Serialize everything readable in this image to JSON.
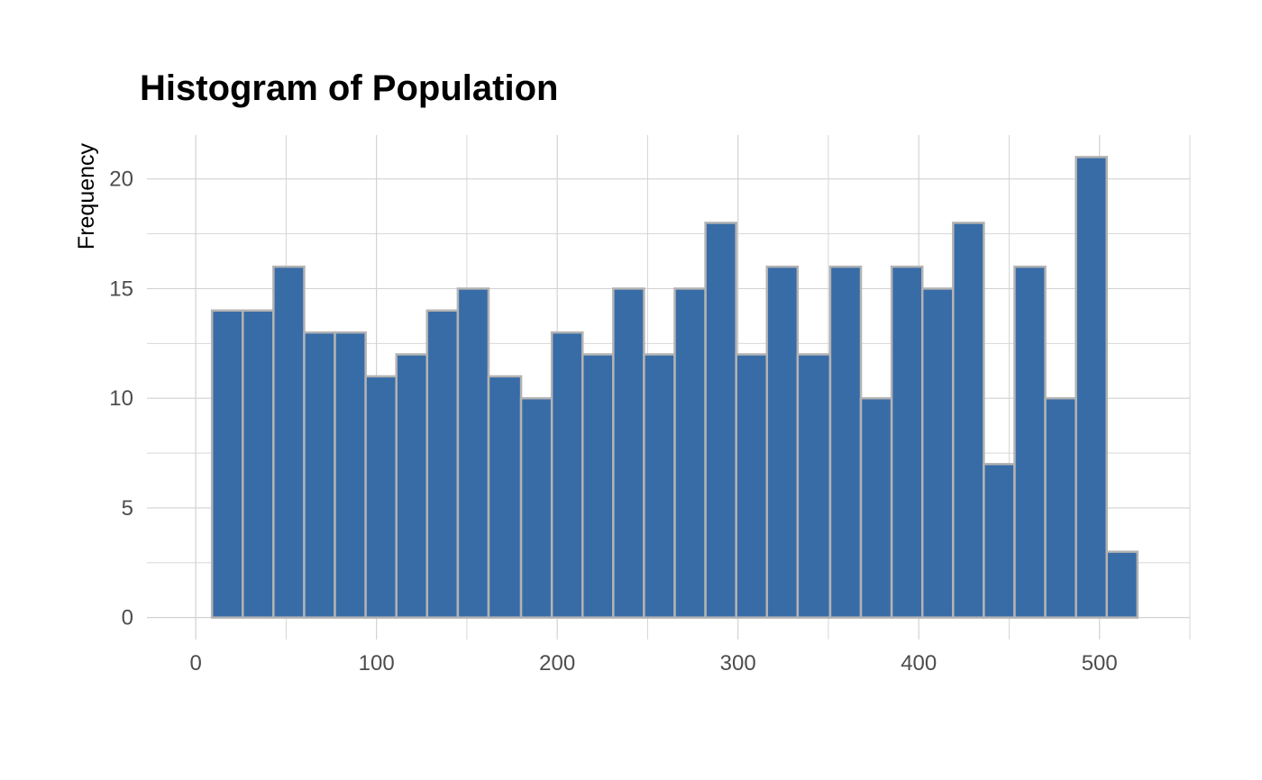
{
  "chart_data": {
    "type": "bar",
    "title": "Histogram of Population",
    "xlabel": "",
    "ylabel": "Frequency",
    "bins": [
      {
        "x0": 9,
        "x1": 26,
        "count": 14
      },
      {
        "x0": 26,
        "x1": 43,
        "count": 14
      },
      {
        "x0": 43,
        "x1": 60,
        "count": 16
      },
      {
        "x0": 60,
        "x1": 77,
        "count": 13
      },
      {
        "x0": 77,
        "x1": 94,
        "count": 13
      },
      {
        "x0": 94,
        "x1": 111,
        "count": 11
      },
      {
        "x0": 111,
        "x1": 128,
        "count": 12
      },
      {
        "x0": 128,
        "x1": 145,
        "count": 14
      },
      {
        "x0": 145,
        "x1": 162,
        "count": 15
      },
      {
        "x0": 162,
        "x1": 180,
        "count": 11
      },
      {
        "x0": 180,
        "x1": 197,
        "count": 10
      },
      {
        "x0": 197,
        "x1": 214,
        "count": 13
      },
      {
        "x0": 214,
        "x1": 231,
        "count": 12
      },
      {
        "x0": 231,
        "x1": 248,
        "count": 15
      },
      {
        "x0": 248,
        "x1": 265,
        "count": 12
      },
      {
        "x0": 265,
        "x1": 282,
        "count": 15
      },
      {
        "x0": 282,
        "x1": 299,
        "count": 18
      },
      {
        "x0": 299,
        "x1": 316,
        "count": 12
      },
      {
        "x0": 316,
        "x1": 333,
        "count": 16
      },
      {
        "x0": 333,
        "x1": 351,
        "count": 12
      },
      {
        "x0": 351,
        "x1": 368,
        "count": 16
      },
      {
        "x0": 368,
        "x1": 385,
        "count": 10
      },
      {
        "x0": 385,
        "x1": 402,
        "count": 16
      },
      {
        "x0": 402,
        "x1": 419,
        "count": 15
      },
      {
        "x0": 419,
        "x1": 436,
        "count": 18
      },
      {
        "x0": 436,
        "x1": 453,
        "count": 7
      },
      {
        "x0": 453,
        "x1": 470,
        "count": 16
      },
      {
        "x0": 470,
        "x1": 487,
        "count": 10
      },
      {
        "x0": 487,
        "x1": 504,
        "count": 21
      },
      {
        "x0": 504,
        "x1": 521,
        "count": 3
      }
    ],
    "xlim": [
      -27,
      550
    ],
    "ylim": [
      -1,
      22
    ],
    "x_ticks": [
      0,
      100,
      200,
      300,
      400,
      500
    ],
    "y_ticks": [
      0,
      5,
      10,
      15,
      20
    ],
    "grid": true,
    "colors": {
      "bar_fill": "#386ca6",
      "bar_stroke": "#b3b3b3",
      "grid": "#d2d2d2",
      "tick_label": "#4d4d4d",
      "title": "#000000"
    }
  }
}
